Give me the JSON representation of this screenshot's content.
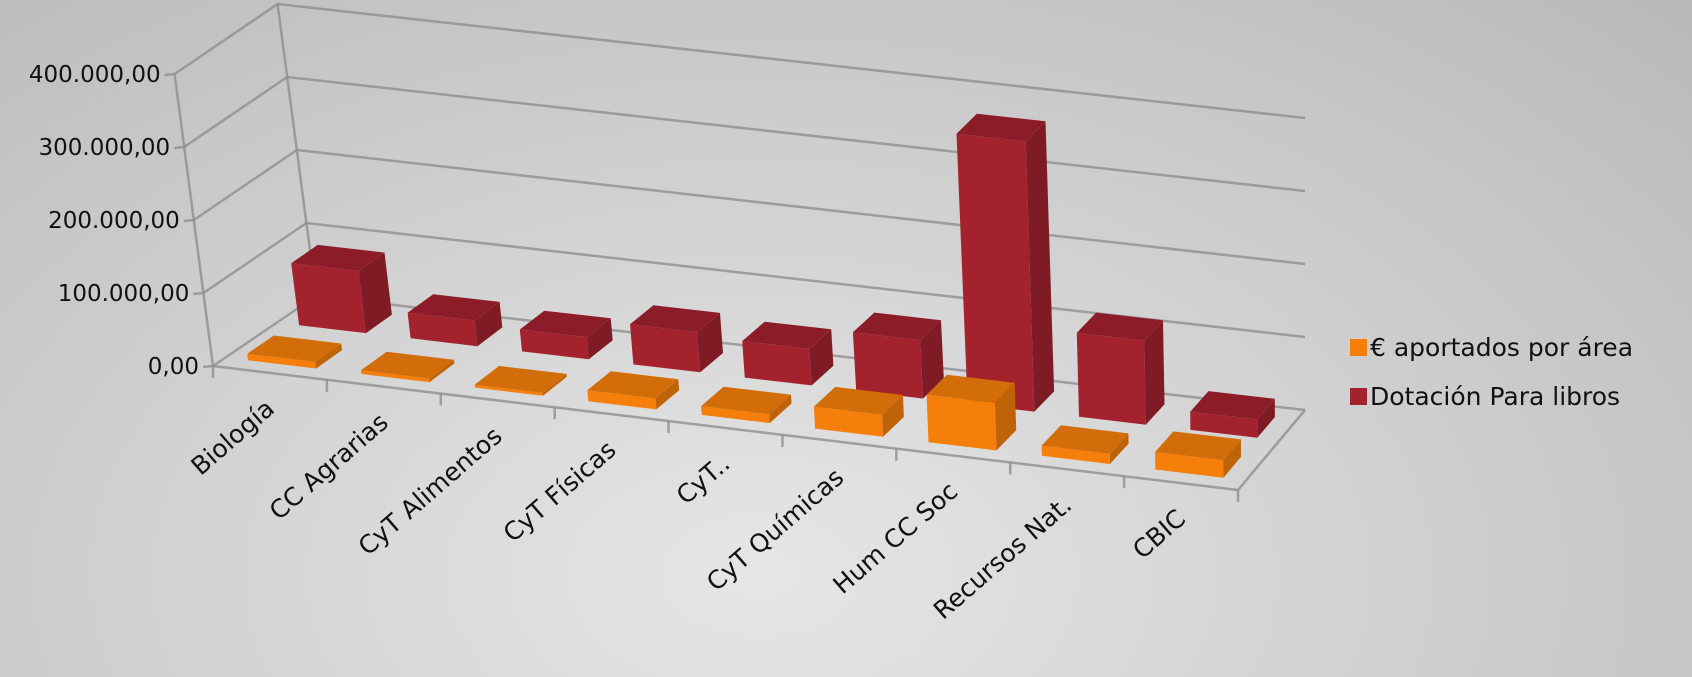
{
  "chart_data": {
    "type": "bar",
    "subtype": "3d-clustered-depth",
    "categories": [
      "Biología",
      "CC Agrarias",
      "CyT Alimentos",
      "CyT Físicas",
      "CyT..",
      "CyT Químicas",
      "Hum CC Soc",
      "Recursos Nat.",
      "CBIC"
    ],
    "series": [
      {
        "name": "€ aportados por área",
        "color": "#f57f0a",
        "values": [
          9000,
          5000,
          4000,
          15000,
          12000,
          30000,
          65000,
          14000,
          24000
        ]
      },
      {
        "name": "Dotación Para libros",
        "color": "#a3222e",
        "values": [
          85000,
          35000,
          30000,
          55000,
          50000,
          80000,
          370000,
          115000,
          25000
        ]
      }
    ],
    "yticks": [
      "0,00",
      "100.000,00",
      "200.000,00",
      "300.000,00",
      "400.000,00"
    ],
    "ylim": [
      0,
      400000
    ],
    "grid": true,
    "legend_position": "right",
    "title": "",
    "xlabel": "",
    "ylabel": ""
  }
}
